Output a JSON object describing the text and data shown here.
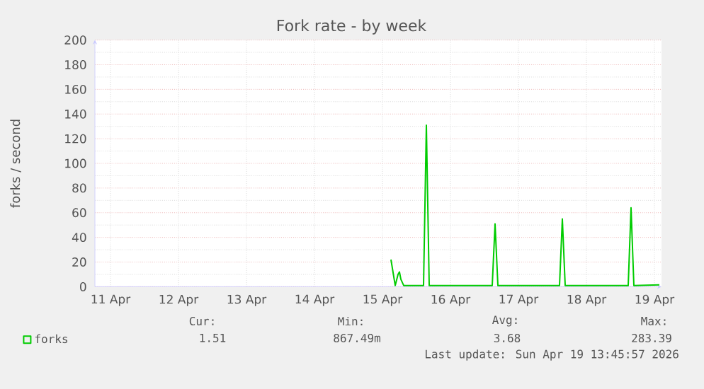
{
  "chart_data": {
    "type": "line",
    "title": "Fork rate - by week",
    "ylabel": "forks / second",
    "xlim": [
      "2026-04-11T06:30",
      "2026-04-19T14:30"
    ],
    "ylim": [
      0,
      200
    ],
    "xticks": [
      {
        "value": "2026-04-11T12:00",
        "label": "11 Apr"
      },
      {
        "value": "2026-04-12T12:00",
        "label": "12 Apr"
      },
      {
        "value": "2026-04-13T12:00",
        "label": "13 Apr"
      },
      {
        "value": "2026-04-14T12:00",
        "label": "14 Apr"
      },
      {
        "value": "2026-04-15T12:00",
        "label": "15 Apr"
      },
      {
        "value": "2026-04-16T12:00",
        "label": "16 Apr"
      },
      {
        "value": "2026-04-17T12:00",
        "label": "17 Apr"
      },
      {
        "value": "2026-04-18T12:00",
        "label": "18 Apr"
      },
      {
        "value": "2026-04-19T12:00",
        "label": "19 Apr"
      }
    ],
    "yticks": [
      0,
      20,
      40,
      60,
      80,
      100,
      120,
      140,
      160,
      180,
      200
    ],
    "grid": true,
    "legend": "bottom",
    "series": [
      {
        "name": "forks",
        "color": "#00cc00",
        "x": [
          "2026-04-15T15:00",
          "2026-04-15T16:30",
          "2026-04-15T17:30",
          "2026-04-15T18:00",
          "2026-04-15T18:30",
          "2026-04-15T19:30",
          "2026-04-16T02:30",
          "2026-04-16T03:30",
          "2026-04-16T04:30",
          "2026-04-17T02:45",
          "2026-04-17T03:45",
          "2026-04-17T04:45",
          "2026-04-18T02:30",
          "2026-04-18T03:30",
          "2026-04-18T04:30",
          "2026-04-19T02:45",
          "2026-04-19T03:45",
          "2026-04-19T04:45",
          "2026-04-19T13:45"
        ],
        "values": [
          22,
          1,
          10,
          12,
          6,
          1,
          1,
          131,
          1,
          1,
          51,
          1,
          1,
          55,
          1,
          1,
          64,
          1,
          1.5
        ]
      }
    ],
    "annotations": [
      "Cur:",
      "1.51",
      "Min:",
      "867.49m",
      "Avg:",
      "3.68",
      "Max:",
      "283.39",
      "Last update: Sun Apr 19 13:45:57 2026"
    ]
  }
}
